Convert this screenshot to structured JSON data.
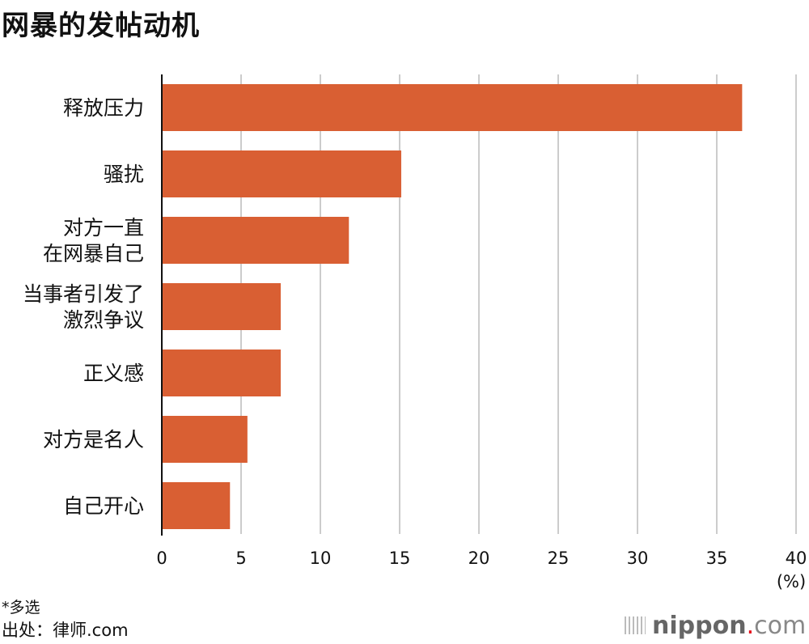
{
  "chart_data": {
    "type": "bar",
    "orientation": "horizontal",
    "title": "网暴的发帖动机",
    "categories": [
      "释放压力",
      "骚扰",
      "对方一直\n在网暴自己",
      "当事者引发了\n激烈争议",
      "正义感",
      "对方是名人",
      "自己开心"
    ],
    "values": [
      36.6,
      15.1,
      11.8,
      7.5,
      7.5,
      5.4,
      4.3
    ],
    "xlabel": "(%)",
    "xlim": [
      0,
      40
    ],
    "xticks": [
      0,
      5,
      10,
      15,
      20,
      25,
      30,
      35,
      40
    ],
    "grid": true,
    "colors": {
      "bar": "#d95f33",
      "grid": "#cccccc",
      "axis": "#111111"
    }
  },
  "footer": {
    "note": "*多选",
    "source": "出处：律师.com",
    "logo": "nippon.com"
  }
}
